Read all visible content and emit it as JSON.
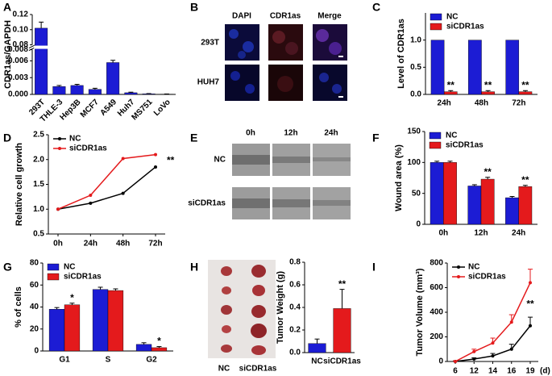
{
  "panel_labels": [
    "A",
    "B",
    "C",
    "D",
    "E",
    "F",
    "G",
    "H",
    "I"
  ],
  "panels": {
    "B": {
      "columns": [
        "DAPI",
        "CDR1as",
        "Merge"
      ],
      "rows": [
        "293T",
        "HUH7"
      ]
    },
    "E": {
      "columns": [
        "0h",
        "12h",
        "24h"
      ],
      "rows": [
        "NC",
        "siCDR1as"
      ]
    },
    "H": {
      "labels": [
        "NC",
        "siCDR1as"
      ]
    }
  },
  "chart_data": [
    {
      "type": "bar",
      "ylabel": "CDR1as/GAPDH",
      "tick_rotation": 45,
      "categories": [
        "293T",
        "THLE-3",
        "Hep3B",
        "MCF7",
        "A549",
        "Huh7",
        "MS751",
        "LoVo"
      ],
      "series": [
        {
          "name": "CDR1as",
          "color": "#1c1cd4",
          "values": [
            0.102,
            0.0014,
            0.0016,
            0.0009,
            0.0057,
            0.0003,
            0.0001,
            5e-05
          ],
          "errors": [
            0.008,
            0.0002,
            0.0002,
            0.0002,
            0.0004,
            0.0001,
            5e-05,
            3e-05
          ]
        }
      ],
      "y_segments": [
        {
          "ylim": [
            0,
            0.008
          ],
          "yticks": [
            {
              "value": 0,
              "label": "0.000"
            },
            0.003,
            0.006,
            0.008
          ]
        },
        {
          "ylim": [
            0.08,
            0.12
          ],
          "yticks": [
            0.08,
            {
              "value": 0.1,
              "label": "0.10"
            },
            0.12
          ]
        }
      ]
    },
    {
      "type": "bar",
      "ylabel": "Level of CDR1as",
      "legend": "upper left",
      "categories": [
        "24h",
        "48h",
        "72h"
      ],
      "series": [
        {
          "name": "NC",
          "color": "#1c1cd4",
          "values": [
            1,
            1,
            1
          ]
        },
        {
          "name": "siCDR1as",
          "color": "#e41a1c",
          "values": [
            0.05,
            0.05,
            0.05
          ],
          "errors": [
            0.02,
            0.02,
            0.02
          ]
        }
      ],
      "annotations": [
        "**",
        "**",
        "**"
      ],
      "ylim": [
        0,
        1.5
      ],
      "yticks": [
        {
          "value": 0,
          "label": "0.0"
        },
        0.5,
        {
          "value": 1,
          "label": "1.0"
        }
      ]
    },
    {
      "type": "line",
      "ylabel": "Relative cell growth",
      "legend": "upper left",
      "categories": [
        "0h",
        "24h",
        "48h",
        "72h"
      ],
      "series": [
        {
          "name": "NC",
          "color": "#000000",
          "values": [
            1.0,
            1.12,
            1.32,
            1.85
          ]
        },
        {
          "name": "siCDR1as",
          "color": "#e41a1c",
          "values": [
            1.0,
            1.28,
            2.02,
            2.1
          ]
        }
      ],
      "annotations": [
        null,
        null,
        null,
        "**"
      ],
      "ylim": [
        0.5,
        2.5
      ],
      "yticks": [
        0.5,
        {
          "value": 1,
          "label": "1.0"
        },
        1.5,
        {
          "value": 2,
          "label": "2.0"
        },
        2.5
      ]
    },
    {
      "type": "bar",
      "ylabel": "Wound area (%)",
      "legend": "upper left",
      "categories": [
        "0h",
        "12h",
        "24h"
      ],
      "series": [
        {
          "name": "NC",
          "color": "#1c1cd4",
          "values": [
            100,
            62,
            43
          ],
          "errors": [
            2,
            2,
            2
          ]
        },
        {
          "name": "siCDR1as",
          "color": "#e41a1c",
          "values": [
            100,
            73,
            61
          ],
          "errors": [
            2,
            3,
            2
          ]
        }
      ],
      "annotations": [
        null,
        "**",
        "**"
      ],
      "ylim": [
        0,
        150
      ],
      "yticks": [
        0,
        50,
        100,
        150
      ]
    },
    {
      "type": "bar",
      "ylabel": "% of cells",
      "legend": "upper left",
      "categories": [
        "G1",
        "S",
        "G2"
      ],
      "series": [
        {
          "name": "NC",
          "color": "#1c1cd4",
          "values": [
            38,
            56,
            6
          ],
          "errors": [
            1.5,
            2,
            1.5
          ]
        },
        {
          "name": "siCDR1as",
          "color": "#e41a1c",
          "values": [
            42,
            55,
            3
          ],
          "errors": [
            1.5,
            1.5,
            1
          ]
        }
      ],
      "annotations": [
        "*",
        null,
        "*"
      ],
      "ylim": [
        0,
        80
      ],
      "yticks": [
        0,
        20,
        40,
        60,
        80
      ]
    },
    {
      "type": "bar",
      "ylabel": "Tumor Weight (g)",
      "categories": [
        "NC",
        "siCDR1as"
      ],
      "series": [
        {
          "name": "Tumor Weight",
          "color": [
            "#1c1cd4",
            "#e41a1c"
          ],
          "values": [
            0.08,
            0.39
          ],
          "errors": [
            0.04,
            0.17
          ]
        }
      ],
      "annotations": [
        null,
        "**"
      ],
      "ylim": [
        0,
        0.8
      ],
      "yticks": [
        {
          "value": 0,
          "label": "0.0"
        },
        0.2,
        0.4,
        0.6,
        0.8
      ]
    },
    {
      "type": "line",
      "ylabel": "Tumor Volume (mm³)",
      "legend": "upper left",
      "x_unit": "(d)",
      "categories": [
        "6",
        "12",
        "14",
        "16",
        "19"
      ],
      "series": [
        {
          "name": "NC",
          "color": "#000000",
          "values": [
            0,
            20,
            45,
            100,
            290
          ],
          "errors": [
            5,
            10,
            20,
            40,
            70
          ]
        },
        {
          "name": "siCDR1as",
          "color": "#e41a1c",
          "values": [
            0,
            80,
            150,
            320,
            640
          ],
          "errors": [
            5,
            20,
            40,
            60,
            110
          ]
        }
      ],
      "annotations": [
        null,
        null,
        null,
        null,
        "**"
      ],
      "ylim": [
        0,
        800
      ],
      "yticks": [
        0,
        200,
        400,
        600,
        800
      ]
    }
  ]
}
